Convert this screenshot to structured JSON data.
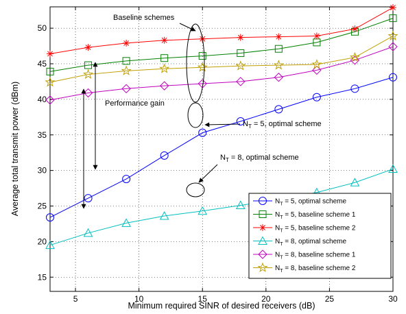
{
  "chart_data": {
    "type": "line",
    "xlabel": "Minimum required SINR of desired receivers (dB)",
    "ylabel": "Average total transmit power (dBm)",
    "xlim": [
      3,
      30
    ],
    "ylim": [
      13,
      53
    ],
    "xticks": [
      5,
      10,
      15,
      20,
      25,
      30
    ],
    "yticks": [
      15,
      20,
      25,
      30,
      35,
      40,
      45,
      50
    ],
    "grid": true,
    "legend_position": "bottom-right",
    "x": [
      3,
      6,
      9,
      12,
      15,
      18,
      21,
      24,
      27,
      30
    ],
    "series": [
      {
        "legend_main": "N",
        "legend_sub": "T",
        "legend_rest": " = 5, optimal scheme",
        "color": "#0000ff",
        "marker": "circle",
        "values": [
          23.4,
          26.1,
          28.8,
          32.1,
          35.3,
          36.9,
          38.6,
          40.3,
          41.5,
          43.1
        ]
      },
      {
        "legend_main": "N",
        "legend_sub": "T",
        "legend_rest": " = 5, baseline scheme 1",
        "color": "#008000",
        "marker": "square",
        "values": [
          43.9,
          44.8,
          45.4,
          45.8,
          46.1,
          46.5,
          47.1,
          48.0,
          49.5,
          51.4
        ]
      },
      {
        "legend_main": "N",
        "legend_sub": "T",
        "legend_rest": " = 5, baseline scheme 2",
        "color": "#ff0000",
        "marker": "asterisk",
        "values": [
          46.4,
          47.3,
          47.9,
          48.3,
          48.5,
          48.7,
          48.8,
          48.9,
          49.9,
          52.9
        ]
      },
      {
        "legend_main": "N",
        "legend_sub": "T",
        "legend_rest": " = 8, optimal scheme",
        "color": "#00bfbf",
        "marker": "triangle",
        "values": [
          19.5,
          21.2,
          22.6,
          23.6,
          24.3,
          25.1,
          25.9,
          26.9,
          28.3,
          30.2
        ]
      },
      {
        "legend_main": "N",
        "legend_sub": "T",
        "legend_rest": " = 8, baseline scheme 1",
        "color": "#bf00bf",
        "marker": "diamond",
        "values": [
          39.9,
          40.9,
          41.5,
          41.9,
          42.2,
          42.5,
          43.1,
          44.1,
          45.5,
          47.4
        ]
      },
      {
        "legend_main": "N",
        "legend_sub": "T",
        "legend_rest": " = 8, baseline scheme 2",
        "color": "#bf9f00",
        "marker": "star",
        "values": [
          42.4,
          43.5,
          44.0,
          44.3,
          44.5,
          44.7,
          44.8,
          44.9,
          45.9,
          48.9
        ]
      }
    ],
    "annotations": {
      "baseline": "Baseline schemes",
      "gain": "Performance gain",
      "nt5_main": "N",
      "nt5_sub": "T",
      "nt5_rest": " = 5, optimal scheme",
      "nt8_main": "N",
      "nt8_sub": "T",
      "nt8_rest": " = 8, optimal scheme"
    }
  }
}
